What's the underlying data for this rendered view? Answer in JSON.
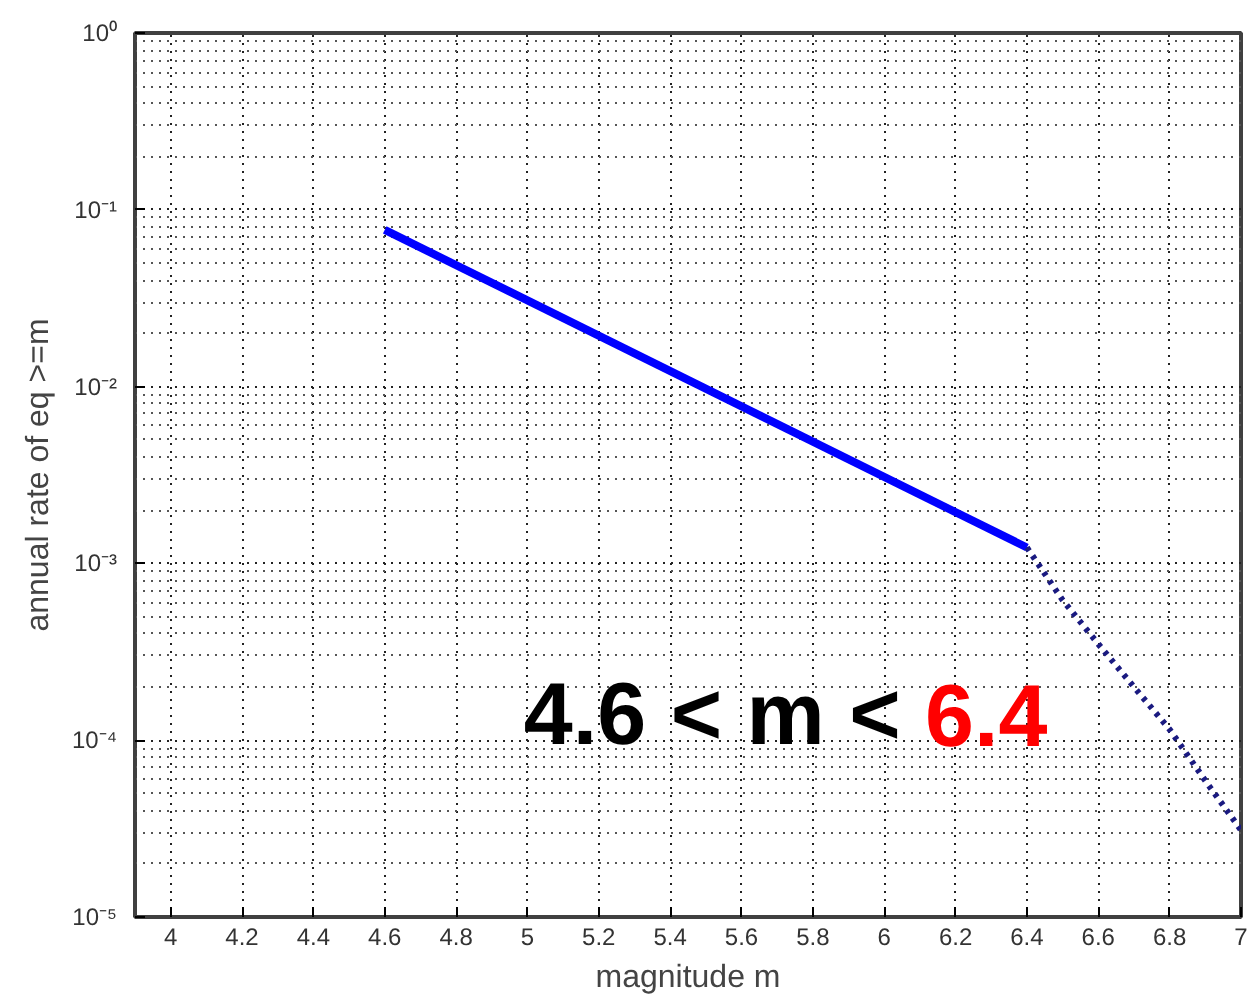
{
  "chart_data": {
    "type": "line",
    "xlabel": "magnitude m",
    "ylabel": "annual rate of eq >=m",
    "log": "y",
    "grid": true,
    "xlim": [
      3.9,
      7
    ],
    "ylim": [
      1e-05,
      1
    ],
    "xticks": [
      4,
      4.2,
      4.4,
      4.6,
      4.8,
      5,
      5.2,
      5.4,
      5.6,
      5.8,
      6,
      6.2,
      6.4,
      6.6,
      6.8,
      7
    ],
    "yticks": [
      {
        "value": 1e-05,
        "label": "10⁻⁵"
      },
      {
        "value": 0.0001,
        "label": "10⁻⁴"
      },
      {
        "value": 0.001,
        "label": "10⁻³"
      },
      {
        "value": 0.01,
        "label": "10⁻²"
      },
      {
        "value": 0.1,
        "label": "10⁻¹"
      },
      {
        "value": 1,
        "label": "10⁰"
      }
    ],
    "annotations": [
      "4.6 < m < 6.4"
    ],
    "series": [
      {
        "line_style": "solid",
        "color": "#0000ff",
        "x": [
          4.6,
          6.4
        ],
        "values": [
          0.077,
          0.00123
        ]
      },
      {
        "line_style": "dotted",
        "color": "#1a1a80",
        "x": [
          6.4,
          6.5,
          6.6,
          6.7,
          6.8,
          6.9,
          7
        ],
        "values": [
          0.00123,
          0.00062,
          0.00035,
          0.0002,
          0.000115,
          5.9e-05,
          3.1e-05
        ]
      }
    ]
  }
}
